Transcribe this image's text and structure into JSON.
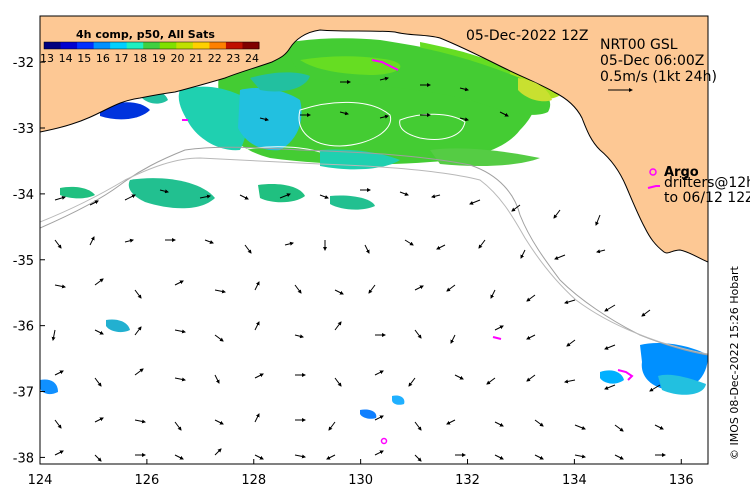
{
  "map": {
    "header_date": "05-Dec-2022 12Z",
    "colorbar": {
      "title": "4h comp, p50, All Sats",
      "ticks": [
        "13",
        "14",
        "15",
        "16",
        "17",
        "18",
        "19",
        "20",
        "21",
        "22",
        "23",
        "24"
      ],
      "colors": [
        "#00007f",
        "#0000d0",
        "#0030ff",
        "#0090ff",
        "#00d0ff",
        "#20f0c0",
        "#40d040",
        "#7fe000",
        "#c0e000",
        "#ffd000",
        "#ff8000",
        "#c01000",
        "#800000"
      ]
    },
    "current_info": {
      "line1": "NRT00 GSL",
      "line2": "05-Dec 06:00Z",
      "line3": "0.5m/s (1kt 24h)"
    },
    "legend": {
      "argo_label": "Argo",
      "drifters_label": "drifters@12h",
      "drifters_to": "to 06/12 12Z"
    },
    "credit": "© IMOS 08-Dec-2022 15:26 Hobart",
    "x_ticks": [
      124,
      126,
      128,
      130,
      132,
      134,
      136
    ],
    "y_ticks": [
      -32,
      -33,
      -34,
      -35,
      -36,
      -37,
      -38
    ],
    "x_range": [
      124,
      136.5
    ],
    "y_range": [
      -38.1,
      -31.3
    ],
    "colors": {
      "land": "#fdc894",
      "magenta": "#ff00ff"
    }
  }
}
